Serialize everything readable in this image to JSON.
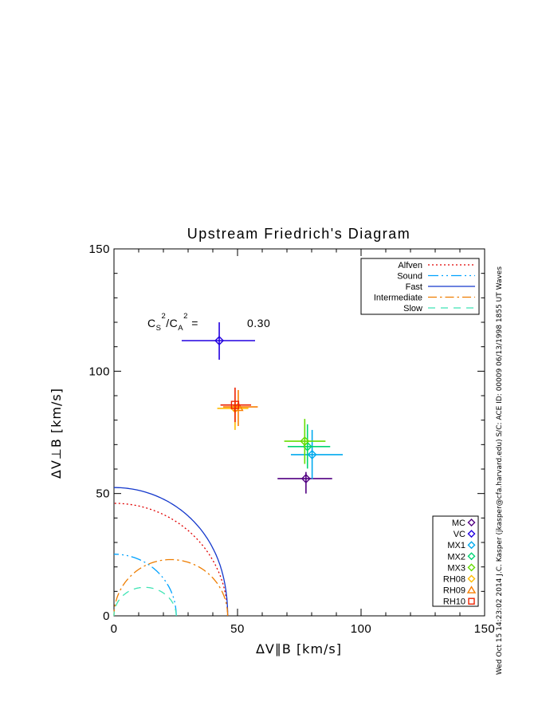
{
  "figure": {
    "title": "Upstream Friedrich's Diagram",
    "credit_vertical": "Wed Oct 15 14:23:02 2014  J.C. Kasper (jkasper@cfa.harvard.edu)  S/C: ACE ID: 00009 06/13/1998  1855 UT Waves"
  },
  "chart_data": {
    "type": "scatter",
    "title": "Upstream Friedrich's Diagram",
    "xlabel": "ΔV∥B [km/s]",
    "ylabel": "ΔV⊥B [km/s]",
    "xlim": [
      0,
      150
    ],
    "ylim": [
      0,
      150
    ],
    "major_ticks": [
      0,
      50,
      100,
      150
    ],
    "tick_labels": [
      "0",
      "50",
      "100",
      "150"
    ],
    "minor_tick_step": 10,
    "grid": false,
    "annotation": {
      "term1": "C",
      "term1_sub": "S",
      "term1_sup": "2",
      "term2": "/C",
      "term2_sub": "A",
      "term2_sup": "2",
      "equals": " =",
      "value": "0.30"
    },
    "alfven_speed_km_s": 46,
    "sound_to_alfven_ratio_sq": 0.3,
    "curves": [
      {
        "name": "Alfven",
        "shape": "alfven_circle",
        "style": "dotted",
        "color": "#e00000"
      },
      {
        "name": "Sound",
        "shape": "sound_circle",
        "style": "dash-dot-dot",
        "color": "#00a2ff"
      },
      {
        "name": "Fast",
        "shape": "fast_lobe",
        "style": "solid",
        "color": "#1438cc"
      },
      {
        "name": "Intermediate",
        "shape": "intermediate_lobe",
        "style": "dash-dot",
        "color": "#ee7d00"
      },
      {
        "name": "Slow",
        "shape": "slow_lobe",
        "style": "dashed",
        "color": "#3fe4b4"
      }
    ],
    "legend_lines_position": "top-right",
    "legend_symbols_position": "bottom-right",
    "points": [
      {
        "name": "MC",
        "symbol": "diamond",
        "color": "#520082",
        "x": 77.7,
        "y": 56.1,
        "xlo": 66.2,
        "xhi": 88.3,
        "ylo": 50.0,
        "yhi": 58.8
      },
      {
        "name": "VC",
        "symbol": "diamond",
        "color": "#2200e0",
        "x": 42.6,
        "y": 112.5,
        "xlo": 27.4,
        "xhi": 57.1,
        "ylo": 104.7,
        "yhi": 120.0
      },
      {
        "name": "MX1",
        "symbol": "diamond",
        "color": "#00aaee",
        "x": 80.2,
        "y": 65.9,
        "xlo": 71.6,
        "xhi": 92.6,
        "ylo": 55.9,
        "yhi": 76.0
      },
      {
        "name": "MX2",
        "symbol": "diamond",
        "color": "#00d573",
        "x": 78.3,
        "y": 69.2,
        "xlo": 70.3,
        "xhi": 87.5,
        "ylo": 60.2,
        "yhi": 78.3
      },
      {
        "name": "MX3",
        "symbol": "diamond",
        "color": "#66dd00",
        "x": 77.2,
        "y": 71.4,
        "xlo": 68.9,
        "xhi": 85.6,
        "ylo": 62.1,
        "yhi": 80.5
      },
      {
        "name": "RH08",
        "symbol": "diamond",
        "color": "#ffbb00",
        "x": 49.0,
        "y": 84.8,
        "xlo": 41.8,
        "xhi": 54.4,
        "ylo": 76.0,
        "yhi": 88.0
      },
      {
        "name": "RH09",
        "symbol": "triangle",
        "color": "#f97e00",
        "x": 50.3,
        "y": 85.4,
        "xlo": 44.2,
        "xhi": 58.2,
        "ylo": 77.6,
        "yhi": 92.3
      },
      {
        "name": "RH10",
        "symbol": "square",
        "color": "#ee2200",
        "x": 49.0,
        "y": 86.2,
        "xlo": 43.1,
        "xhi": 55.5,
        "ylo": 79.2,
        "yhi": 93.3
      }
    ]
  }
}
